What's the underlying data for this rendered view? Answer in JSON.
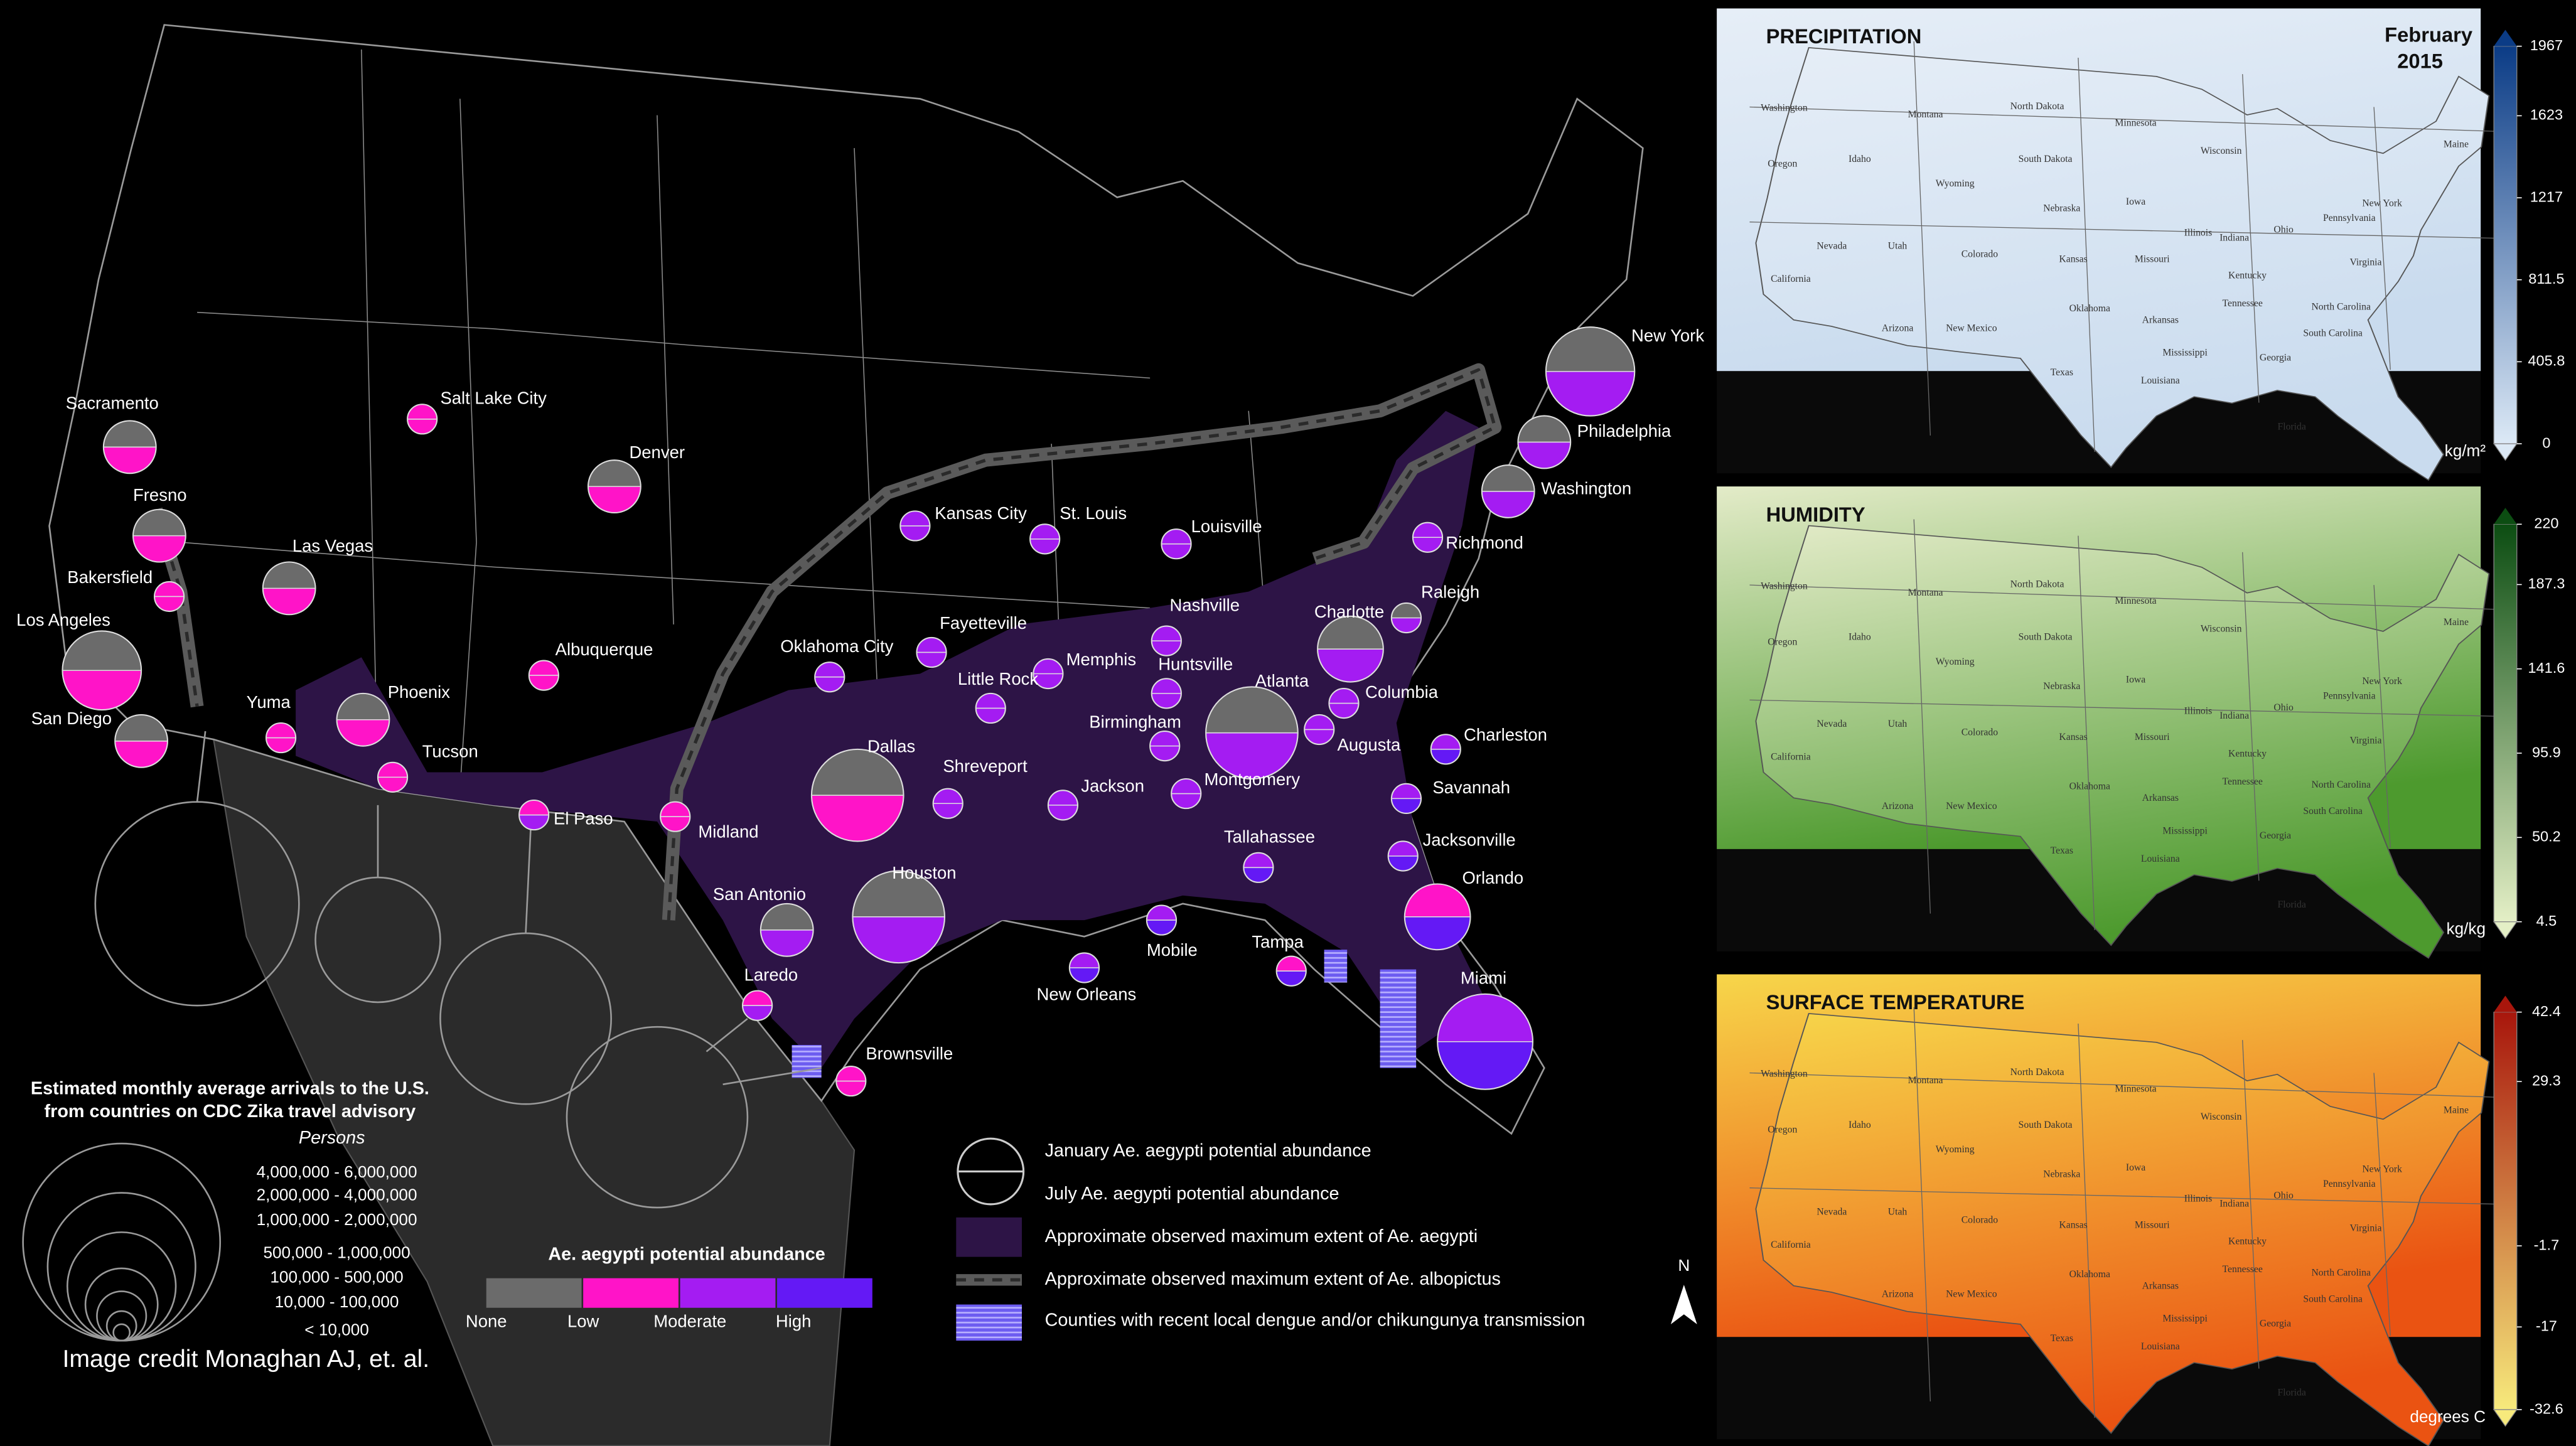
{
  "map": {
    "cities": [
      {
        "name": "New York",
        "january": "None",
        "july": "Moderate"
      },
      {
        "name": "Philadelphia",
        "january": "None",
        "july": "Moderate"
      },
      {
        "name": "Washington",
        "january": "None",
        "july": "Moderate"
      },
      {
        "name": "Richmond",
        "january": "Moderate",
        "july": "Moderate"
      },
      {
        "name": "Raleigh",
        "january": "None",
        "july": "Moderate"
      },
      {
        "name": "Charlotte",
        "january": "None",
        "july": "Moderate"
      },
      {
        "name": "Columbia",
        "january": "Moderate",
        "july": "Moderate"
      },
      {
        "name": "Charleston",
        "january": "Moderate",
        "july": "High"
      },
      {
        "name": "Augusta",
        "january": "Moderate",
        "july": "Moderate"
      },
      {
        "name": "Savannah",
        "january": "Moderate",
        "july": "High"
      },
      {
        "name": "Jacksonville",
        "january": "Moderate",
        "july": "High"
      },
      {
        "name": "Orlando",
        "january": "Low",
        "july": "High"
      },
      {
        "name": "Tampa",
        "january": "Low",
        "july": "High"
      },
      {
        "name": "Miami",
        "january": "Moderate",
        "july": "High"
      },
      {
        "name": "Tallahassee",
        "january": "Moderate",
        "july": "High"
      },
      {
        "name": "Atlanta",
        "january": "None",
        "july": "Moderate"
      },
      {
        "name": "Birmingham",
        "january": "Moderate",
        "july": "Moderate"
      },
      {
        "name": "Montgomery",
        "january": "Moderate",
        "july": "Moderate"
      },
      {
        "name": "Huntsville",
        "january": "Moderate",
        "july": "Moderate"
      },
      {
        "name": "Nashville",
        "january": "Moderate",
        "july": "Moderate"
      },
      {
        "name": "Louisville",
        "january": "Moderate",
        "july": "Moderate"
      },
      {
        "name": "Memphis",
        "january": "Moderate",
        "july": "Moderate"
      },
      {
        "name": "St. Louis",
        "january": "Moderate",
        "july": "Moderate"
      },
      {
        "name": "Kansas City",
        "january": "Moderate",
        "july": "Moderate"
      },
      {
        "name": "Fayetteville",
        "january": "Moderate",
        "july": "Moderate"
      },
      {
        "name": "Little Rock",
        "january": "Moderate",
        "july": "Moderate"
      },
      {
        "name": "Oklahoma City",
        "january": "Moderate",
        "july": "Moderate"
      },
      {
        "name": "Shreveport",
        "january": "Moderate",
        "july": "Moderate"
      },
      {
        "name": "Jackson",
        "january": "Moderate",
        "july": "Moderate"
      },
      {
        "name": "Mobile",
        "january": "Moderate",
        "july": "High"
      },
      {
        "name": "New Orleans",
        "january": "Moderate",
        "july": "High"
      },
      {
        "name": "Dallas",
        "january": "None",
        "july": "Low"
      },
      {
        "name": "Houston",
        "january": "None",
        "july": "Moderate"
      },
      {
        "name": "San Antonio",
        "january": "None",
        "july": "Moderate"
      },
      {
        "name": "Laredo",
        "january": "Low",
        "july": "Moderate"
      },
      {
        "name": "Brownsville",
        "january": "Low",
        "july": "Low"
      },
      {
        "name": "Midland",
        "january": "Low",
        "july": "Low"
      },
      {
        "name": "El Paso",
        "january": "Low",
        "july": "Moderate"
      },
      {
        "name": "Tucson",
        "january": "Low",
        "july": "Low"
      },
      {
        "name": "Phoenix",
        "january": "None",
        "july": "Low"
      },
      {
        "name": "Yuma",
        "january": "Low",
        "july": "Low"
      },
      {
        "name": "San Diego",
        "january": "None",
        "july": "Low"
      },
      {
        "name": "Los Angeles",
        "january": "None",
        "july": "Low"
      },
      {
        "name": "Bakersfield",
        "january": "Low",
        "july": "Low"
      },
      {
        "name": "Fresno",
        "january": "None",
        "july": "Low"
      },
      {
        "name": "Sacramento",
        "january": "None",
        "july": "Low"
      },
      {
        "name": "Las Vegas",
        "january": "None",
        "july": "Low"
      },
      {
        "name": "Salt Lake City",
        "january": "Low",
        "july": "Low"
      },
      {
        "name": "Denver",
        "january": "None",
        "july": "Low"
      },
      {
        "name": "Albuquerque",
        "january": "Low",
        "july": "Low"
      }
    ],
    "abundance_legend": {
      "title": "Ae. aegypti potential abundance",
      "levels": [
        {
          "name": "None",
          "color": "#6b6b6b"
        },
        {
          "name": "Low",
          "color": "#ff14c8"
        },
        {
          "name": "Moderate",
          "color": "#a41cf2"
        },
        {
          "name": "High",
          "color": "#6419f5"
        }
      ]
    },
    "arrivals_legend": {
      "title": [
        "Estimated monthly average arrivals to the U.S.",
        "from countries on CDC Zika travel advisory"
      ],
      "unit": "Persons",
      "classes": [
        "4,000,000  -  6,000,000",
        "2,000,000  -  4,000,000",
        "1,000,000  -  2,000,000",
        "500,000  -  1,000,000",
        "100,000  -  500,000",
        "10,000  -  100,000",
        "< 10,000"
      ]
    },
    "legend_items": [
      "January Ae. aegypti potential abundance",
      "July Ae. aegypti potential abundance",
      "Approximate observed maximum extent of  Ae. aegypti",
      "Approximate observed maximum extent of  Ae. albopictus",
      "Counties with recent local dengue and/or chikungunya transmission"
    ],
    "north": "N",
    "credit": "Image credit Monaghan AJ, et. al."
  },
  "panels": [
    {
      "title": "PRECIPITATION",
      "date": [
        "February",
        "2015"
      ],
      "unit": "kg/m²",
      "lim": [
        0,
        1967
      ],
      "ticks": [
        1967,
        1623,
        1217,
        811.5,
        405.8,
        0
      ],
      "colors": [
        "#dce9f6",
        "#0b3c86"
      ],
      "background": [
        "#e6eef7",
        "#c9dbee"
      ]
    },
    {
      "title": "HUMIDITY",
      "unit": "kg/kg",
      "lim": [
        4.5,
        220
      ],
      "ticks": [
        220,
        187.3,
        141.6,
        95.9,
        50.2,
        4.5
      ],
      "colors": [
        "#e4efc6",
        "#0c4d12"
      ],
      "background": [
        "#e3ebc8",
        "#4d9a2e"
      ]
    },
    {
      "title": "SURFACE TEMPERATURE",
      "unit": "degrees C",
      "lim": [
        -32.6,
        42.4
      ],
      "ticks": [
        42.4,
        29.3,
        -1.7,
        -17,
        -32.6
      ],
      "colors": [
        "#f7ea7c",
        "#a8160c"
      ],
      "background": [
        "#f7d64a",
        "#ea5312"
      ]
    }
  ],
  "state_labels": [
    "Washington",
    "Montana",
    "North Dakota",
    "Minnesota",
    "Oregon",
    "Idaho",
    "Wyoming",
    "South Dakota",
    "Wisconsin",
    "Nebraska",
    "Iowa",
    "Nevada",
    "Utah",
    "Colorado",
    "Kansas",
    "Illinois",
    "Indiana",
    "Ohio",
    "Pennsylvania",
    "California",
    "Missouri",
    "Kentucky",
    "Virginia",
    "Arizona",
    "New Mexico",
    "Oklahoma",
    "Arkansas",
    "Tennessee",
    "North Carolina",
    "Texas",
    "Mississippi",
    "Georgia",
    "South Carolina",
    "Louisiana",
    "Florida",
    "Maine",
    "New York"
  ]
}
